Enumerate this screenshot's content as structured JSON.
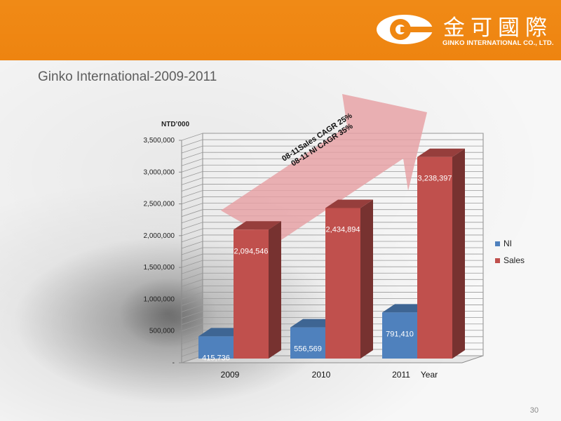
{
  "header": {
    "logo_icon": "ginko-g-logo",
    "logo_name_cn": "金可國際",
    "logo_name_en": "GINKO INTERNATIONAL CO., LTD."
  },
  "page": {
    "title": "Ginko International-2009-2011",
    "page_number": "30"
  },
  "colors": {
    "header": "#ef8712",
    "ni": "#4f81bd",
    "sales": "#c0504d",
    "arrow": "#e6a0a3"
  },
  "chart_data": {
    "type": "bar",
    "three_d": true,
    "unit_label": "NTD’000",
    "xlabel": "Year",
    "categories": [
      "2009",
      "2010",
      "2011"
    ],
    "series": [
      {
        "name": "NI",
        "values": [
          415736,
          556569,
          791410
        ],
        "labels": [
          "415,736",
          "556,569",
          "791,410"
        ],
        "color": "#4f81bd"
      },
      {
        "name": "Sales",
        "values": [
          2094546,
          2434894,
          3238397
        ],
        "labels": [
          "2,094,546",
          "2,434,894",
          "3,238,397"
        ],
        "color": "#c0504d"
      }
    ],
    "y_ticks": [
      {
        "value": 0,
        "label": "-"
      },
      {
        "value": 500000,
        "label": "500,000"
      },
      {
        "value": 1000000,
        "label": "1,000,000"
      },
      {
        "value": 1500000,
        "label": "1,500,000"
      },
      {
        "value": 2000000,
        "label": "2,000,000"
      },
      {
        "value": 2500000,
        "label": "2,500,000"
      },
      {
        "value": 3000000,
        "label": "3,000,000"
      },
      {
        "value": 3500000,
        "label": "3,500,000"
      }
    ],
    "ylim": [
      0,
      3500000
    ],
    "grid": true,
    "legend_position": "right",
    "annotation": {
      "line1": "08-11Sales CAGR 25%",
      "line2": "08-11 NI CAGR 35%"
    }
  }
}
